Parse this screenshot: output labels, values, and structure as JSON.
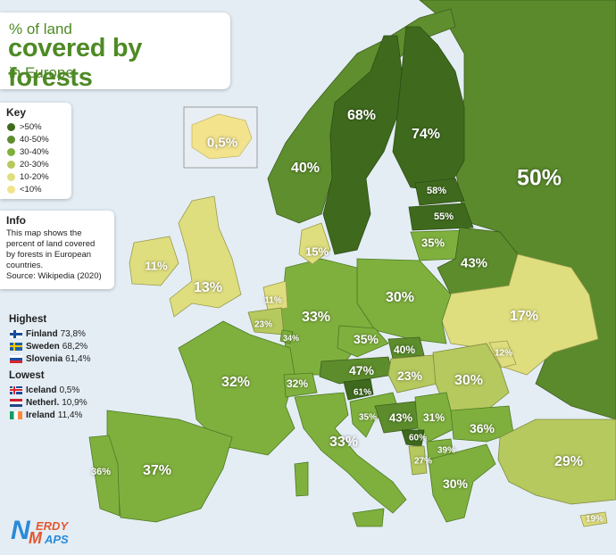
{
  "title": {
    "line1": "% of land",
    "line2": "covered by forests",
    "line3": "in Europe"
  },
  "key": {
    "heading": "Key",
    "items": [
      {
        "label": ">50%",
        "color": "#3f6b1f"
      },
      {
        "label": "40-50%",
        "color": "#5c8c2c"
      },
      {
        "label": "30-40%",
        "color": "#7fb03e"
      },
      {
        "label": "20-30%",
        "color": "#b5c95e"
      },
      {
        "label": "10-20%",
        "color": "#dede7e"
      },
      {
        "label": "<10%",
        "color": "#f2e38c"
      }
    ]
  },
  "info": {
    "heading": "Info",
    "lines": [
      "This map shows the",
      "percent of land covered",
      "by forests in European",
      "countries.",
      "Source: Wikipedia (2020)"
    ]
  },
  "highest": {
    "heading": "Highest",
    "items": [
      {
        "country": "Finland",
        "value": "73,8%"
      },
      {
        "country": "Sweden",
        "value": "68,2%"
      },
      {
        "country": "Slovenia",
        "value": "61,4%"
      }
    ]
  },
  "lowest": {
    "heading": "Lowest",
    "items": [
      {
        "country": "Iceland",
        "value": "0,5%"
      },
      {
        "country": "Netherl.",
        "value": "10,9%"
      },
      {
        "country": "Ireland",
        "value": "11,4%"
      }
    ]
  },
  "country_labels": {
    "iceland": "0,5%",
    "norway": "40%",
    "sweden": "68%",
    "finland": "74%",
    "russia": "50%",
    "estonia": "58%",
    "latvia": "55%",
    "lithuania": "35%",
    "belarus": "43%",
    "denmark": "15%",
    "ireland": "11%",
    "uk": "13%",
    "netherlands": "11%",
    "belgium": "23%",
    "luxembourg": "34%",
    "germany": "33%",
    "poland": "30%",
    "ukraine": "17%",
    "czechia": "35%",
    "slovakia": "40%",
    "austria": "47%",
    "switzerland": "32%",
    "france": "32%",
    "hungary": "23%",
    "moldova": "12%",
    "romania": "30%",
    "slovenia": "61%",
    "croatia": "35%",
    "bosnia": "43%",
    "serbia": "31%",
    "bulgaria": "36%",
    "montenegro": "60%",
    "albania": "27%",
    "north_macedonia": "39%",
    "greece": "30%",
    "italy": "33%",
    "portugal": "36%",
    "spain": "37%",
    "turkey": "29%",
    "cyprus": "19%"
  },
  "logo": {
    "line1": "ERDY",
    "line2": "APS",
    "n": "N",
    "m": "M"
  }
}
